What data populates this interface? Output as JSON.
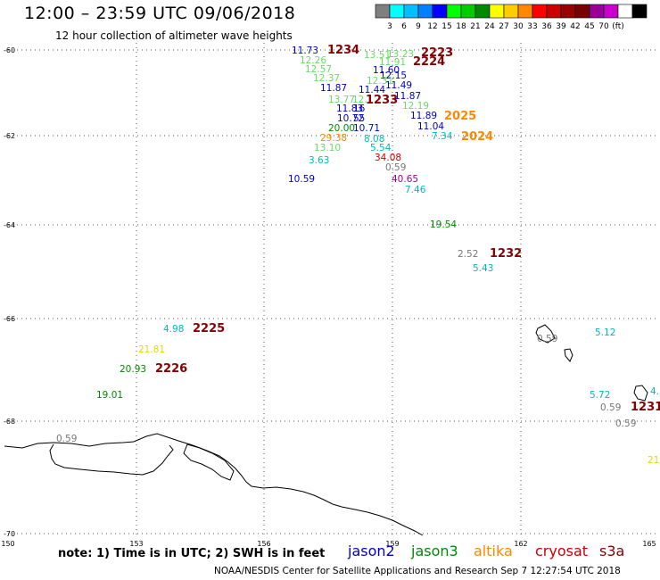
{
  "title": "12:00 – 23:59 UTC 09/06/2018",
  "subtitle": "12 hour collection of altimeter wave heights",
  "colorbar": {
    "colors": [
      "#7f7f7f",
      "#00ffff",
      "#00bfff",
      "#007fff",
      "#0000ff",
      "#00ff00",
      "#00cc00",
      "#008800",
      "#ffff00",
      "#ffcc00",
      "#ff8800",
      "#ff0000",
      "#cc0000",
      "#990000",
      "#770000",
      "#990099",
      "#cc00cc",
      "#ffffff",
      "#000000"
    ],
    "labels": [
      "3",
      "6",
      "9",
      "12",
      "15",
      "18",
      "21",
      "24",
      "27",
      "30",
      "33",
      "36",
      "39",
      "42",
      "45",
      "70",
      "(ft)"
    ]
  },
  "axes": {
    "lat_labels": [
      "-60",
      "-62",
      "-64",
      "-66",
      "-68",
      "-70"
    ],
    "lon_labels": [
      "150",
      "153",
      "156",
      "159",
      "162",
      "165"
    ]
  },
  "observations": [
    {
      "text": "11.73",
      "color": "#0000cc"
    },
    {
      "text": "1234",
      "color": "#880000"
    },
    {
      "text": "12.26",
      "color": "#66dd66"
    },
    {
      "text": "12.57",
      "color": "#66dd66"
    },
    {
      "text": "12.37",
      "color": "#66dd66"
    },
    {
      "text": "11.87",
      "color": "#0000cc"
    },
    {
      "text": "13.51",
      "color": "#66dd66"
    },
    {
      "text": "13.23",
      "color": "#66dd66"
    },
    {
      "text": "11.91",
      "color": "#66dd66"
    },
    {
      "text": "2223",
      "color": "#880000"
    },
    {
      "text": "2224",
      "color": "#880000"
    },
    {
      "text": "11.60",
      "color": "#0000cc"
    },
    {
      "text": "12.15",
      "color": "#0000cc"
    },
    {
      "text": "12.31",
      "color": "#66dd66"
    },
    {
      "text": "11.49",
      "color": "#0000cc"
    },
    {
      "text": "11.44",
      "color": "#0000cc"
    },
    {
      "text": "11.87",
      "color": "#0000cc"
    },
    {
      "text": "13.77",
      "color": "#66dd66"
    },
    {
      "text": "12.1",
      "color": "#66dd66"
    },
    {
      "text": "1233",
      "color": "#880000"
    },
    {
      "text": "12.19",
      "color": "#66dd66"
    },
    {
      "text": "11.83",
      "color": "#0000cc"
    },
    {
      "text": "16",
      "color": "#0000cc"
    },
    {
      "text": "10.72",
      "color": "#0000cc"
    },
    {
      "text": "55",
      "color": "#0000cc"
    },
    {
      "text": "11.89",
      "color": "#0000cc"
    },
    {
      "text": "2025",
      "color": "#ff8800"
    },
    {
      "text": "20.00",
      "color": "#008800"
    },
    {
      "text": "10.71",
      "color": "#0000cc"
    },
    {
      "text": "11.04",
      "color": "#0000cc"
    },
    {
      "text": "29.38",
      "color": "#ff8800"
    },
    {
      "text": "8.08",
      "color": "#00bbbb"
    },
    {
      "text": "7.34",
      "color": "#00bbbb"
    },
    {
      "text": "2024",
      "color": "#ff8800"
    },
    {
      "text": "13.10",
      "color": "#66dd66"
    },
    {
      "text": "5.54",
      "color": "#00bbbb"
    },
    {
      "text": "3.63",
      "color": "#00bbbb"
    },
    {
      "text": "34.08",
      "color": "#cc0000"
    },
    {
      "text": "0.59",
      "color": "#777777"
    },
    {
      "text": "10.59",
      "color": "#0000cc"
    },
    {
      "text": "40.65",
      "color": "#990099"
    },
    {
      "text": "7.46",
      "color": "#00bbbb"
    },
    {
      "text": "19.54",
      "color": "#008800"
    },
    {
      "text": "2.52",
      "color": "#777777"
    },
    {
      "text": "1232",
      "color": "#880000"
    },
    {
      "text": "5.43",
      "color": "#00bbbb"
    },
    {
      "text": "4.98",
      "color": "#00bbbb"
    },
    {
      "text": "2225",
      "color": "#880000"
    },
    {
      "text": "21.81",
      "color": "#dddd00"
    },
    {
      "text": "20.93",
      "color": "#008800"
    },
    {
      "text": "2226",
      "color": "#880000"
    },
    {
      "text": "19.01",
      "color": "#008800"
    },
    {
      "text": "0.59",
      "color": "#777777"
    },
    {
      "text": "5.12",
      "color": "#00bbbb"
    },
    {
      "text": "5.72",
      "color": "#00bbbb"
    },
    {
      "text": "4.",
      "color": "#00bbbb"
    },
    {
      "text": "0.59",
      "color": "#777777"
    },
    {
      "text": "1231",
      "color": "#880000"
    },
    {
      "text": "0.59",
      "color": "#777777"
    },
    {
      "text": "0.59",
      "color": "#777777"
    },
    {
      "text": "21",
      "color": "#dddd00"
    }
  ],
  "note": "note: 1) Time is in UTC; 2) SWH is in feet",
  "satellites": [
    {
      "name": "jason2",
      "color": "#0000cc"
    },
    {
      "name": "jason3",
      "color": "#008800"
    },
    {
      "name": "altika",
      "color": "#ff8800"
    },
    {
      "name": "cryosat",
      "color": "#cc0000"
    },
    {
      "name": "s3a",
      "color": "#880000"
    }
  ],
  "credit": "NOAA/NESDIS Center for Satellite Applications and Research   Sep  7 12:27:54 UTC 2018"
}
